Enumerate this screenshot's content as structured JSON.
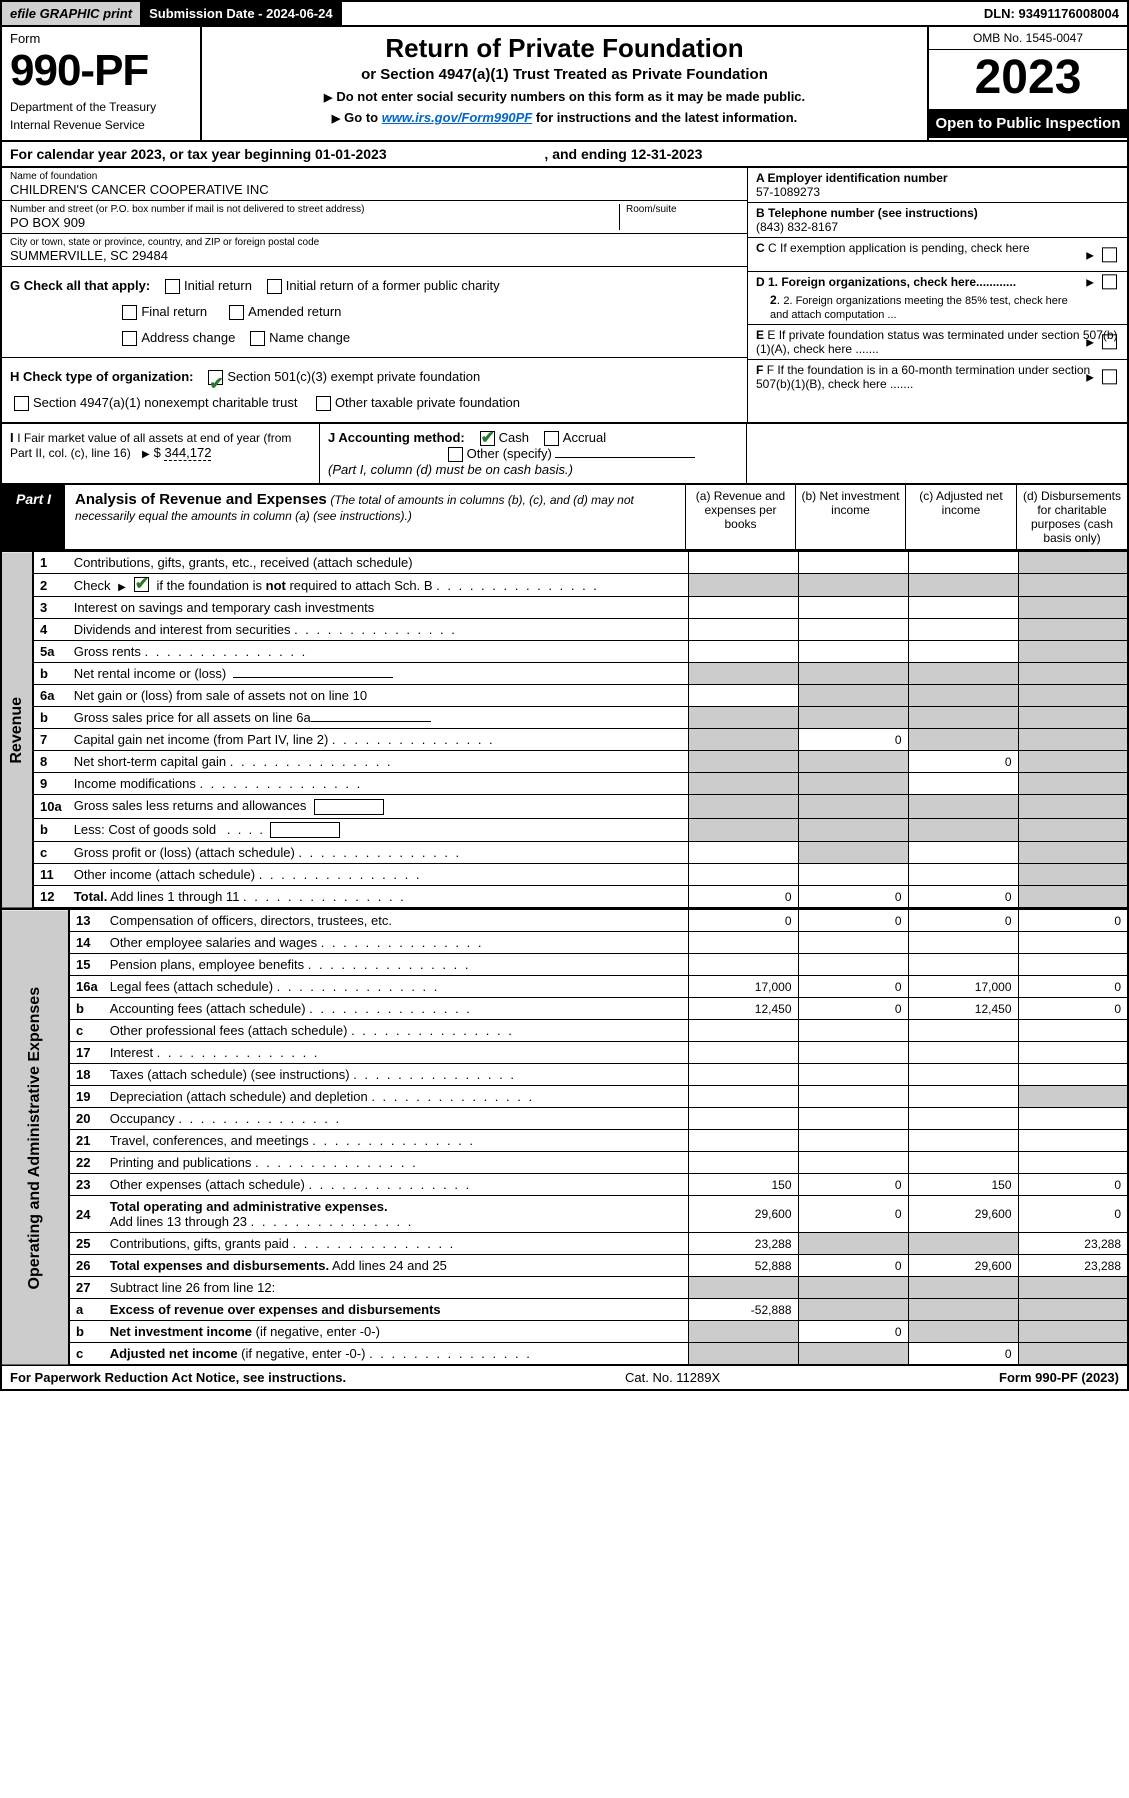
{
  "topbar": {
    "efile": "efile GRAPHIC print",
    "submission": "Submission Date - 2024-06-24",
    "dln": "DLN: 93491176008004"
  },
  "header": {
    "form_word": "Form",
    "form_number": "990-PF",
    "dept": "Department of the Treasury",
    "irs": "Internal Revenue Service",
    "title": "Return of Private Foundation",
    "subtitle": "or Section 4947(a)(1) Trust Treated as Private Foundation",
    "instr1": "Do not enter social security numbers on this form as it may be made public.",
    "instr2_pre": "Go to ",
    "instr2_link": "www.irs.gov/Form990PF",
    "instr2_post": " for instructions and the latest information.",
    "omb": "OMB No. 1545-0047",
    "year": "2023",
    "open_pub": "Open to Public Inspection"
  },
  "calyear": {
    "text_pre": "For calendar year 2023, or tax year beginning ",
    "begin": "01-01-2023",
    "mid": " , and ending ",
    "end": "12-31-2023"
  },
  "name": {
    "label": "Name of foundation",
    "value": "CHILDREN'S CANCER COOPERATIVE INC"
  },
  "address": {
    "label": "Number and street (or P.O. box number if mail is not delivered to street address)",
    "value": "PO BOX 909",
    "room_label": "Room/suite"
  },
  "city": {
    "label": "City or town, state or province, country, and ZIP or foreign postal code",
    "value": "SUMMERVILLE, SC  29484"
  },
  "ein": {
    "label": "A Employer identification number",
    "value": "57-1089273"
  },
  "phone": {
    "label": "B Telephone number (see instructions)",
    "value": "(843) 832-8167"
  },
  "cpending": "C If exemption application is pending, check here",
  "d1": "D 1. Foreign organizations, check here............",
  "d2": "2. Foreign organizations meeting the 85% test, check here and attach computation ...",
  "e": "E If private foundation status was terminated under section 507(b)(1)(A), check here .......",
  "f": "F If the foundation is in a 60-month termination under section 507(b)(1)(B), check here .......",
  "g": {
    "label": "G Check all that apply:",
    "initial": "Initial return",
    "initial_former": "Initial return of a former public charity",
    "final": "Final return",
    "amended": "Amended return",
    "address": "Address change",
    "name": "Name change"
  },
  "h": {
    "label": "H Check type of organization:",
    "c3": "Section 501(c)(3) exempt private foundation",
    "trust": "Section 4947(a)(1) nonexempt charitable trust",
    "other": "Other taxable private foundation"
  },
  "i": {
    "label": "I Fair market value of all assets at end of year (from Part II, col. (c), line 16)",
    "value": "344,172"
  },
  "j": {
    "label": "J Accounting method:",
    "cash": "Cash",
    "accrual": "Accrual",
    "other": "Other (specify)",
    "note": "(Part I, column (d) must be on cash basis.)"
  },
  "part1": {
    "tab": "Part I",
    "title": "Analysis of Revenue and Expenses",
    "title_note": " (The total of amounts in columns (b), (c), and (d) may not necessarily equal the amounts in column (a) (see instructions).)",
    "col_a": "(a)   Revenue and expenses per books",
    "col_b": "(b)   Net investment income",
    "col_c": "(c)   Adjusted net income",
    "col_d": "(d)   Disbursements for charitable purposes (cash basis only)"
  },
  "side": {
    "revenue": "Revenue",
    "expenses": "Operating and Administrative Expenses"
  },
  "rows": [
    {
      "n": "1",
      "d": "s",
      "a": "",
      "b": "",
      "c": ""
    },
    {
      "n": "2",
      "d": "s",
      "a": "s",
      "b": "s",
      "c": "s",
      "dots": true
    },
    {
      "n": "3",
      "d": "s",
      "a": "",
      "b": "",
      "c": ""
    },
    {
      "n": "4",
      "d": "s",
      "a": "",
      "b": "",
      "c": "",
      "dots": true
    },
    {
      "n": "5a",
      "d": "s",
      "a": "",
      "b": "",
      "c": "",
      "dots": true
    },
    {
      "n": "b",
      "d": "s",
      "a": "s",
      "b": "s",
      "c": "s"
    },
    {
      "n": "6a",
      "d": "s",
      "a": "",
      "b": "s",
      "c": "s"
    },
    {
      "n": "b",
      "d": "s",
      "a": "s",
      "b": "s",
      "c": "s"
    },
    {
      "n": "7",
      "d": "s",
      "a": "s",
      "b": "0",
      "c": "s",
      "dots": true
    },
    {
      "n": "8",
      "d": "s",
      "a": "s",
      "b": "s",
      "c": "0",
      "dots": true
    },
    {
      "n": "9",
      "d": "s",
      "a": "s",
      "b": "s",
      "c": "",
      "dots": true
    },
    {
      "n": "10a",
      "d": "s",
      "a": "s",
      "b": "s",
      "c": "s"
    },
    {
      "n": "b",
      "d": "s",
      "a": "s",
      "b": "s",
      "c": "s"
    },
    {
      "n": "c",
      "d": "s",
      "a": "",
      "b": "s",
      "c": "",
      "dots": true
    },
    {
      "n": "11",
      "d": "s",
      "a": "",
      "b": "",
      "c": "",
      "dots": true
    },
    {
      "n": "12",
      "d": "s",
      "a": "0",
      "b": "0",
      "c": "0",
      "dots": true
    }
  ],
  "exp_rows": [
    {
      "n": "13",
      "d": "0",
      "a": "0",
      "b": "0",
      "c": "0"
    },
    {
      "n": "14",
      "d": "",
      "a": "",
      "b": "",
      "c": "",
      "dots": true
    },
    {
      "n": "15",
      "d": "",
      "a": "",
      "b": "",
      "c": "",
      "dots": true
    },
    {
      "n": "16a",
      "d": "0",
      "a": "17,000",
      "b": "0",
      "c": "17,000",
      "dots": true
    },
    {
      "n": "b",
      "d": "0",
      "a": "12,450",
      "b": "0",
      "c": "12,450",
      "dots": true
    },
    {
      "n": "c",
      "d": "",
      "a": "",
      "b": "",
      "c": "",
      "dots": true
    },
    {
      "n": "17",
      "d": "",
      "a": "",
      "b": "",
      "c": "",
      "dots": true
    },
    {
      "n": "18",
      "d": "",
      "a": "",
      "b": "",
      "c": "",
      "dots": true
    },
    {
      "n": "19",
      "d": "s",
      "a": "",
      "b": "",
      "c": "",
      "dots": true
    },
    {
      "n": "20",
      "d": "",
      "a": "",
      "b": "",
      "c": "",
      "dots": true
    },
    {
      "n": "21",
      "d": "",
      "a": "",
      "b": "",
      "c": "",
      "dots": true
    },
    {
      "n": "22",
      "d": "",
      "a": "",
      "b": "",
      "c": "",
      "dots": true
    },
    {
      "n": "23",
      "d": "0",
      "a": "150",
      "b": "0",
      "c": "150",
      "dots": true
    },
    {
      "n": "24",
      "d": "0",
      "a": "29,600",
      "b": "0",
      "c": "29,600",
      "dots": true
    },
    {
      "n": "25",
      "d": "23,288",
      "a": "23,288",
      "b": "s",
      "c": "s",
      "dots": true
    },
    {
      "n": "26",
      "d": "23,288",
      "a": "52,888",
      "b": "0",
      "c": "29,600"
    },
    {
      "n": "27",
      "d": "s",
      "a": "s",
      "b": "s",
      "c": "s"
    },
    {
      "n": "a",
      "d": "s",
      "a": "-52,888",
      "b": "s",
      "c": "s"
    },
    {
      "n": "b",
      "d": "s",
      "a": "s",
      "b": "0",
      "c": "s"
    },
    {
      "n": "c",
      "d": "s",
      "a": "s",
      "b": "s",
      "c": "0",
      "dots": true
    }
  ],
  "footer": {
    "left": "For Paperwork Reduction Act Notice, see instructions.",
    "mid": "Cat. No. 11289X",
    "right": "Form 990-PF (2023)"
  }
}
